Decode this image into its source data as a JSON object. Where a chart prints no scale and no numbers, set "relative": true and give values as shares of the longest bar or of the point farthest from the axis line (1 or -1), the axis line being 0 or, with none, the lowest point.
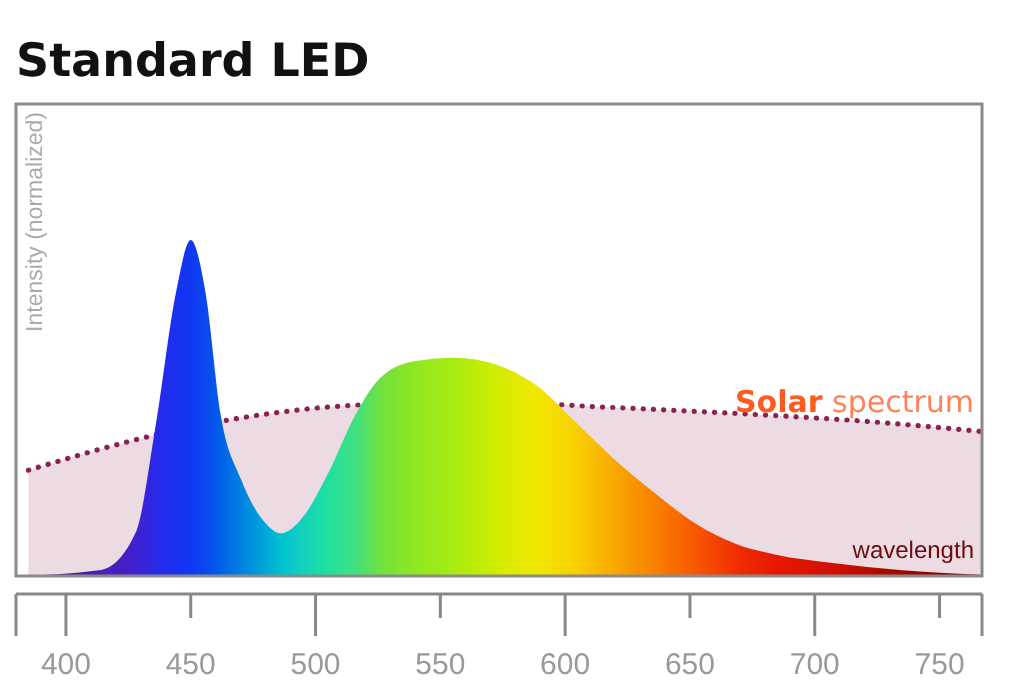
{
  "chart_data": {
    "type": "area",
    "title": "Standard LED",
    "xlabel": "wavelength",
    "ylabel": "Intensity (normalized)",
    "relative": true,
    "xlim": [
      380,
      767
    ],
    "xticks": [
      {
        "value": 380,
        "label": null
      },
      400,
      450,
      500,
      550,
      600,
      650,
      700,
      750,
      {
        "value": 767,
        "label": null
      }
    ],
    "grid": false,
    "series": [
      {
        "name": "Solar spectrum",
        "color": "#8b2252",
        "line_style": "dotted",
        "x": [
          385,
          436,
          468,
          520,
          572,
          612,
          668,
          721,
          767
        ],
        "values": [
          0.315,
          0.42,
          0.468,
          0.51,
          0.518,
          0.504,
          0.484,
          0.46,
          0.43
        ]
      },
      {
        "x": [
          380,
          414,
          428,
          436,
          444,
          450,
          456,
          462,
          470,
          480,
          486,
          494,
          505,
          516,
          526,
          540,
          556,
          572,
          588,
          604,
          620,
          636,
          652,
          668,
          684,
          708,
          734,
          766
        ],
        "values": [
          0,
          0.018,
          0.13,
          0.45,
          0.84,
          1,
          0.84,
          0.48,
          0.29,
          0.157,
          0.127,
          0.167,
          0.305,
          0.48,
          0.59,
          0.64,
          0.65,
          0.63,
          0.57,
          0.46,
          0.345,
          0.246,
          0.157,
          0.097,
          0.064,
          0.038,
          0.018,
          0.004
        ],
        "colors": [
          "#3a1a6a",
          "#4a20b0",
          "#4020d0",
          "#2a2ae8",
          "#1a30f0",
          "#1038f0",
          "#0a48f0",
          "#0060e8",
          "#0080e0",
          "#00a8d8",
          "#00c0d0",
          "#10d0c0",
          "#20e0a0",
          "#40e080",
          "#70e040",
          "#90e820",
          "#a8ec10",
          "#d0ec00",
          "#f0e800",
          "#f8d000",
          "#f8a800",
          "#f88000",
          "#f85800",
          "#f03000",
          "#e81800",
          "#d01000",
          "#a00800",
          "#700000"
        ]
      }
    ]
  }
}
